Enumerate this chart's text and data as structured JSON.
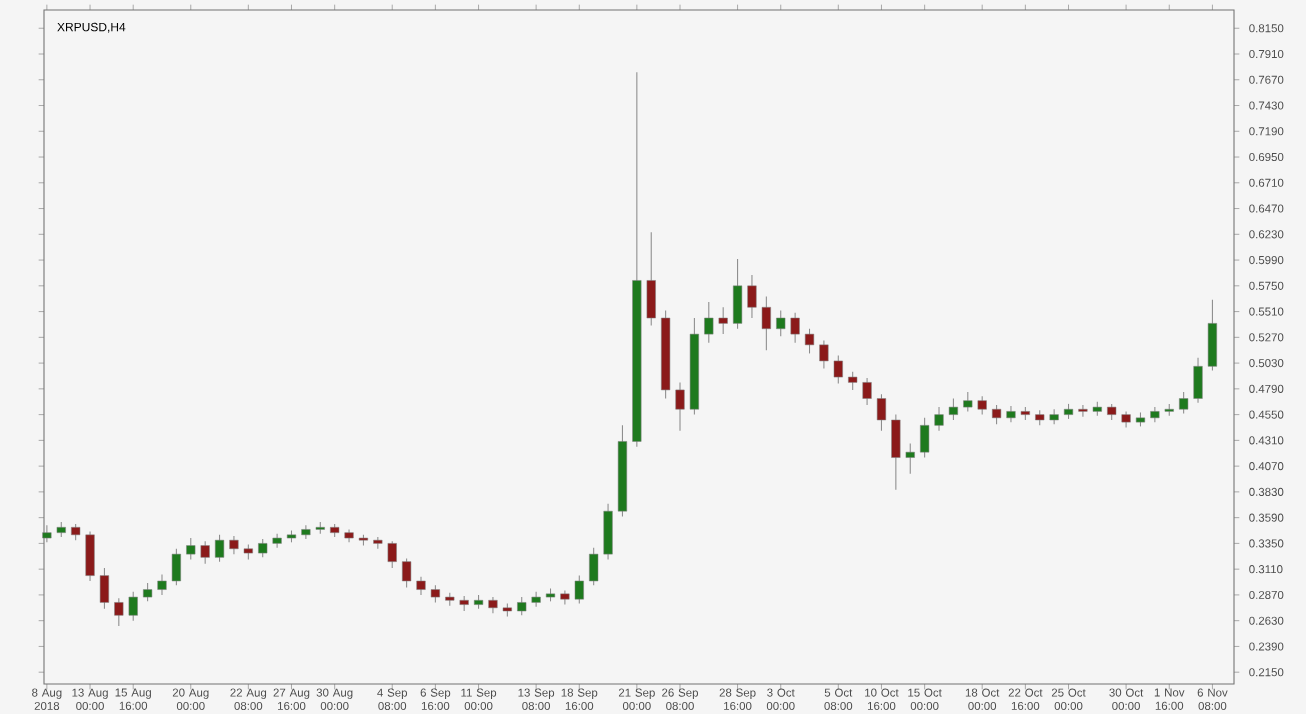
{
  "chart_data": {
    "type": "candlestick",
    "title": "XRPUSD,H4",
    "categories": [
      "8 Aug 2018",
      null,
      null,
      "13 Aug 00:00",
      null,
      null,
      "15 Aug 16:00",
      null,
      null,
      null,
      "20 Aug 00:00",
      null,
      null,
      null,
      "22 Aug 08:00",
      null,
      null,
      "27 Aug 16:00",
      null,
      null,
      "30 Aug 00:00",
      null,
      null,
      null,
      "4 Sep 08:00",
      null,
      null,
      "6 Sep 16:00",
      null,
      null,
      "11 Sep 00:00",
      null,
      null,
      null,
      "13 Sep 08:00",
      null,
      null,
      "18 Sep 16:00",
      null,
      null,
      null,
      "21 Sep 00:00",
      null,
      null,
      "26 Sep 08:00",
      null,
      null,
      null,
      "28 Sep 16:00",
      null,
      null,
      "3 Oct 00:00",
      null,
      null,
      null,
      "5 Oct 08:00",
      null,
      null,
      "10 Oct 16:00",
      null,
      null,
      "15 Oct 00:00",
      null,
      null,
      null,
      "18 Oct 00:00",
      null,
      null,
      "22 Oct 16:00",
      null,
      null,
      "25 Oct 00:00",
      null,
      null,
      null,
      "30 Oct 00:00",
      null,
      null,
      "1 Nov 16:00",
      null,
      null,
      "6 Nov 08:00"
    ],
    "ohlc": [
      [
        0.34,
        0.352,
        0.336,
        0.345
      ],
      [
        0.345,
        0.355,
        0.341,
        0.35
      ],
      [
        0.35,
        0.353,
        0.338,
        0.343
      ],
      [
        0.343,
        0.346,
        0.3,
        0.305
      ],
      [
        0.305,
        0.312,
        0.274,
        0.28
      ],
      [
        0.28,
        0.284,
        0.258,
        0.268
      ],
      [
        0.268,
        0.29,
        0.263,
        0.285
      ],
      [
        0.285,
        0.298,
        0.281,
        0.292
      ],
      [
        0.292,
        0.306,
        0.287,
        0.3
      ],
      [
        0.3,
        0.33,
        0.296,
        0.325
      ],
      [
        0.325,
        0.34,
        0.32,
        0.333
      ],
      [
        0.333,
        0.337,
        0.316,
        0.322
      ],
      [
        0.322,
        0.343,
        0.318,
        0.338
      ],
      [
        0.338,
        0.342,
        0.325,
        0.33
      ],
      [
        0.33,
        0.334,
        0.32,
        0.326
      ],
      [
        0.326,
        0.339,
        0.322,
        0.335
      ],
      [
        0.335,
        0.344,
        0.331,
        0.34
      ],
      [
        0.34,
        0.347,
        0.336,
        0.343
      ],
      [
        0.343,
        0.352,
        0.339,
        0.348
      ],
      [
        0.348,
        0.355,
        0.344,
        0.35
      ],
      [
        0.35,
        0.353,
        0.341,
        0.345
      ],
      [
        0.345,
        0.348,
        0.336,
        0.34
      ],
      [
        0.34,
        0.343,
        0.333,
        0.338
      ],
      [
        0.338,
        0.341,
        0.33,
        0.335
      ],
      [
        0.335,
        0.337,
        0.312,
        0.318
      ],
      [
        0.318,
        0.321,
        0.294,
        0.3
      ],
      [
        0.3,
        0.304,
        0.287,
        0.292
      ],
      [
        0.292,
        0.296,
        0.28,
        0.285
      ],
      [
        0.285,
        0.289,
        0.277,
        0.282
      ],
      [
        0.282,
        0.286,
        0.272,
        0.278
      ],
      [
        0.278,
        0.287,
        0.274,
        0.282
      ],
      [
        0.282,
        0.285,
        0.27,
        0.275
      ],
      [
        0.275,
        0.279,
        0.267,
        0.272
      ],
      [
        0.272,
        0.285,
        0.268,
        0.28
      ],
      [
        0.28,
        0.29,
        0.276,
        0.285
      ],
      [
        0.285,
        0.293,
        0.281,
        0.288
      ],
      [
        0.288,
        0.291,
        0.278,
        0.283
      ],
      [
        0.283,
        0.305,
        0.279,
        0.3
      ],
      [
        0.3,
        0.331,
        0.296,
        0.325
      ],
      [
        0.325,
        0.372,
        0.32,
        0.365
      ],
      [
        0.365,
        0.445,
        0.36,
        0.43
      ],
      [
        0.43,
        0.774,
        0.425,
        0.58
      ],
      [
        0.58,
        0.625,
        0.538,
        0.545
      ],
      [
        0.545,
        0.552,
        0.47,
        0.478
      ],
      [
        0.478,
        0.485,
        0.44,
        0.46
      ],
      [
        0.46,
        0.545,
        0.455,
        0.53
      ],
      [
        0.53,
        0.56,
        0.522,
        0.545
      ],
      [
        0.545,
        0.555,
        0.53,
        0.54
      ],
      [
        0.54,
        0.6,
        0.535,
        0.575
      ],
      [
        0.575,
        0.585,
        0.545,
        0.555
      ],
      [
        0.555,
        0.565,
        0.515,
        0.535
      ],
      [
        0.535,
        0.552,
        0.528,
        0.545
      ],
      [
        0.545,
        0.55,
        0.522,
        0.53
      ],
      [
        0.53,
        0.535,
        0.512,
        0.52
      ],
      [
        0.52,
        0.524,
        0.498,
        0.505
      ],
      [
        0.505,
        0.51,
        0.484,
        0.49
      ],
      [
        0.49,
        0.495,
        0.478,
        0.485
      ],
      [
        0.485,
        0.489,
        0.464,
        0.47
      ],
      [
        0.47,
        0.474,
        0.44,
        0.45
      ],
      [
        0.45,
        0.455,
        0.385,
        0.415
      ],
      [
        0.415,
        0.428,
        0.4,
        0.42
      ],
      [
        0.42,
        0.452,
        0.415,
        0.445
      ],
      [
        0.445,
        0.462,
        0.44,
        0.455
      ],
      [
        0.455,
        0.47,
        0.45,
        0.462
      ],
      [
        0.462,
        0.476,
        0.458,
        0.468
      ],
      [
        0.468,
        0.472,
        0.455,
        0.46
      ],
      [
        0.46,
        0.464,
        0.446,
        0.452
      ],
      [
        0.452,
        0.463,
        0.448,
        0.458
      ],
      [
        0.458,
        0.462,
        0.45,
        0.455
      ],
      [
        0.455,
        0.459,
        0.445,
        0.45
      ],
      [
        0.45,
        0.46,
        0.446,
        0.455
      ],
      [
        0.455,
        0.465,
        0.451,
        0.46
      ],
      [
        0.46,
        0.464,
        0.453,
        0.458
      ],
      [
        0.458,
        0.467,
        0.454,
        0.462
      ],
      [
        0.462,
        0.465,
        0.45,
        0.455
      ],
      [
        0.455,
        0.458,
        0.443,
        0.448
      ],
      [
        0.448,
        0.457,
        0.444,
        0.452
      ],
      [
        0.452,
        0.462,
        0.448,
        0.458
      ],
      [
        0.458,
        0.465,
        0.454,
        0.46
      ],
      [
        0.46,
        0.476,
        0.456,
        0.47
      ],
      [
        0.47,
        0.508,
        0.466,
        0.5
      ],
      [
        0.5,
        0.562,
        0.496,
        0.54
      ]
    ],
    "colors": [
      "#1e7a1e",
      "#1e7a1e",
      "#8b1a1a",
      "#8b1a1a",
      "#8b1a1a",
      "#8b1a1a",
      "#1e7a1e",
      "#1e7a1e",
      "#1e7a1e",
      "#1e7a1e",
      "#1e7a1e",
      "#8b1a1a",
      "#1e7a1e",
      "#8b1a1a",
      "#8b1a1a",
      "#1e7a1e",
      "#1e7a1e",
      "#1e7a1e",
      "#1e7a1e",
      "#1e7a1e",
      "#8b1a1a",
      "#8b1a1a",
      "#8b1a1a",
      "#8b1a1a",
      "#8b1a1a",
      "#8b1a1a",
      "#8b1a1a",
      "#8b1a1a",
      "#8b1a1a",
      "#8b1a1a",
      "#1e7a1e",
      "#8b1a1a",
      "#8b1a1a",
      "#1e7a1e",
      "#1e7a1e",
      "#1e7a1e",
      "#8b1a1a",
      "#1e7a1e",
      "#1e7a1e",
      "#1e7a1e",
      "#1e7a1e",
      "#1e7a1e",
      "#8b1a1a",
      "#8b1a1a",
      "#8b1a1a",
      "#1e7a1e",
      "#1e7a1e",
      "#8b1a1a",
      "#1e7a1e",
      "#8b1a1a",
      "#8b1a1a",
      "#1e7a1e",
      "#8b1a1a",
      "#8b1a1a",
      "#8b1a1a",
      "#8b1a1a",
      "#8b1a1a",
      "#8b1a1a",
      "#8b1a1a",
      "#8b1a1a",
      "#1e7a1e",
      "#1e7a1e",
      "#1e7a1e",
      "#1e7a1e",
      "#1e7a1e",
      "#8b1a1a",
      "#8b1a1a",
      "#1e7a1e",
      "#8b1a1a",
      "#8b1a1a",
      "#1e7a1e",
      "#1e7a1e",
      "#8b1a1a",
      "#1e7a1e",
      "#8b1a1a",
      "#8b1a1a",
      "#1e7a1e",
      "#1e7a1e",
      "#1e7a1e",
      "#1e7a1e",
      "#1e7a1e",
      "#1e7a1e"
    ],
    "ylim": [
      0.204,
      0.832
    ],
    "yticks": [
      {
        "value": 0.215,
        "label": "0.2150"
      },
      {
        "value": 0.239,
        "label": "0.2390"
      },
      {
        "value": 0.263,
        "label": "0.2630"
      },
      {
        "value": 0.287,
        "label": "0.2870"
      },
      {
        "value": 0.311,
        "label": "0.3110"
      },
      {
        "value": 0.335,
        "label": "0.3350"
      },
      {
        "value": 0.359,
        "label": "0.3590"
      },
      {
        "value": 0.383,
        "label": "0.3830"
      },
      {
        "value": 0.407,
        "label": "0.4070"
      },
      {
        "value": 0.431,
        "label": "0.4310"
      },
      {
        "value": 0.455,
        "label": "0.4550"
      },
      {
        "value": 0.479,
        "label": "0.4790"
      },
      {
        "value": 0.503,
        "label": "0.5030"
      },
      {
        "value": 0.527,
        "label": "0.5270"
      },
      {
        "value": 0.551,
        "label": "0.5510"
      },
      {
        "value": 0.575,
        "label": "0.5750"
      },
      {
        "value": 0.599,
        "label": "0.5990"
      },
      {
        "value": 0.623,
        "label": "0.6230"
      },
      {
        "value": 0.647,
        "label": "0.6470"
      },
      {
        "value": 0.671,
        "label": "0.6710"
      },
      {
        "value": 0.695,
        "label": "0.6950"
      },
      {
        "value": 0.719,
        "label": "0.7190"
      },
      {
        "value": 0.743,
        "label": "0.7430"
      },
      {
        "value": 0.767,
        "label": "0.7670"
      },
      {
        "value": 0.791,
        "label": "0.7910"
      },
      {
        "value": 0.815,
        "label": "0.8150"
      }
    ],
    "grid": false
  }
}
